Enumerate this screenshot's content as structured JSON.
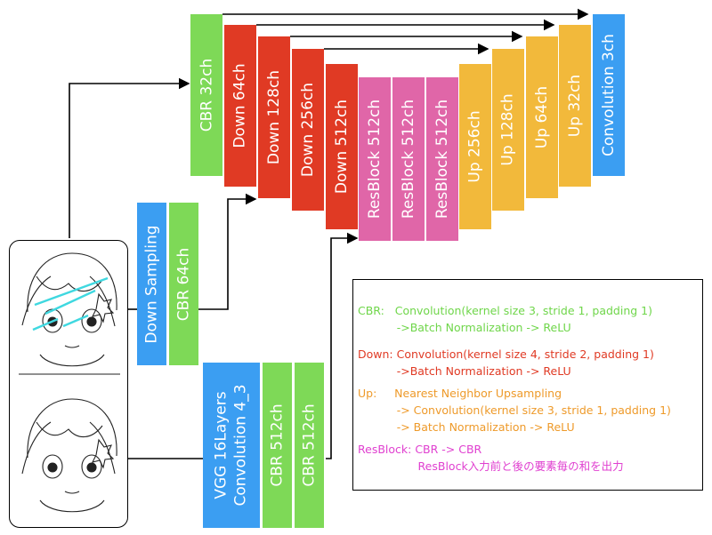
{
  "blocks": {
    "cbr32": "CBR 32ch",
    "down64": "Down 64ch",
    "down128": "Down 128ch",
    "down256": "Down 256ch",
    "down512": "Down 512ch",
    "res1": "ResBlock 512ch",
    "res2": "ResBlock 512ch",
    "res3": "ResBlock 512ch",
    "up256": "Up 256ch",
    "up128": "Up 128ch",
    "up64": "Up 64ch",
    "up32": "Up 32ch",
    "conv3": "Convolution 3ch",
    "downsampling": "Down Sampling",
    "cbr64": "CBR 64ch",
    "vgg_line1": "VGG 16Layers",
    "vgg_line2": "Convolution 4_3",
    "cbr512a": "CBR 512ch",
    "cbr512b": "CBR 512ch"
  },
  "legend": {
    "cbr_1": "CBR:   Convolution(kernel size 3, stride 1, padding 1)",
    "cbr_2": "           ->Batch Normalization -> ReLU",
    "down_1": "Down: Convolution(kernel size 4, stride 2, padding 1)",
    "down_2": "           ->Batch Normalization -> ReLU",
    "up_1": "Up:     Nearest Neighbor Upsampling",
    "up_2": "           -> Convolution(kernel size 3, stride 1, padding 1)",
    "up_3": "           -> Batch Normalization -> ReLU",
    "res_1": "ResBlock: CBR -> CBR",
    "res_2": "                 ResBlock入力前と後の要素毎の和を出力"
  },
  "colors": {
    "green": "#7ed957",
    "red": "#e03a24",
    "pink": "#e066a8",
    "orange": "#f2b93b",
    "blue": "#3b9ef2",
    "legend_green": "#6fd64a",
    "legend_red": "#e03a24",
    "legend_orange": "#ee9a2a",
    "legend_pink": "#e040d0"
  }
}
